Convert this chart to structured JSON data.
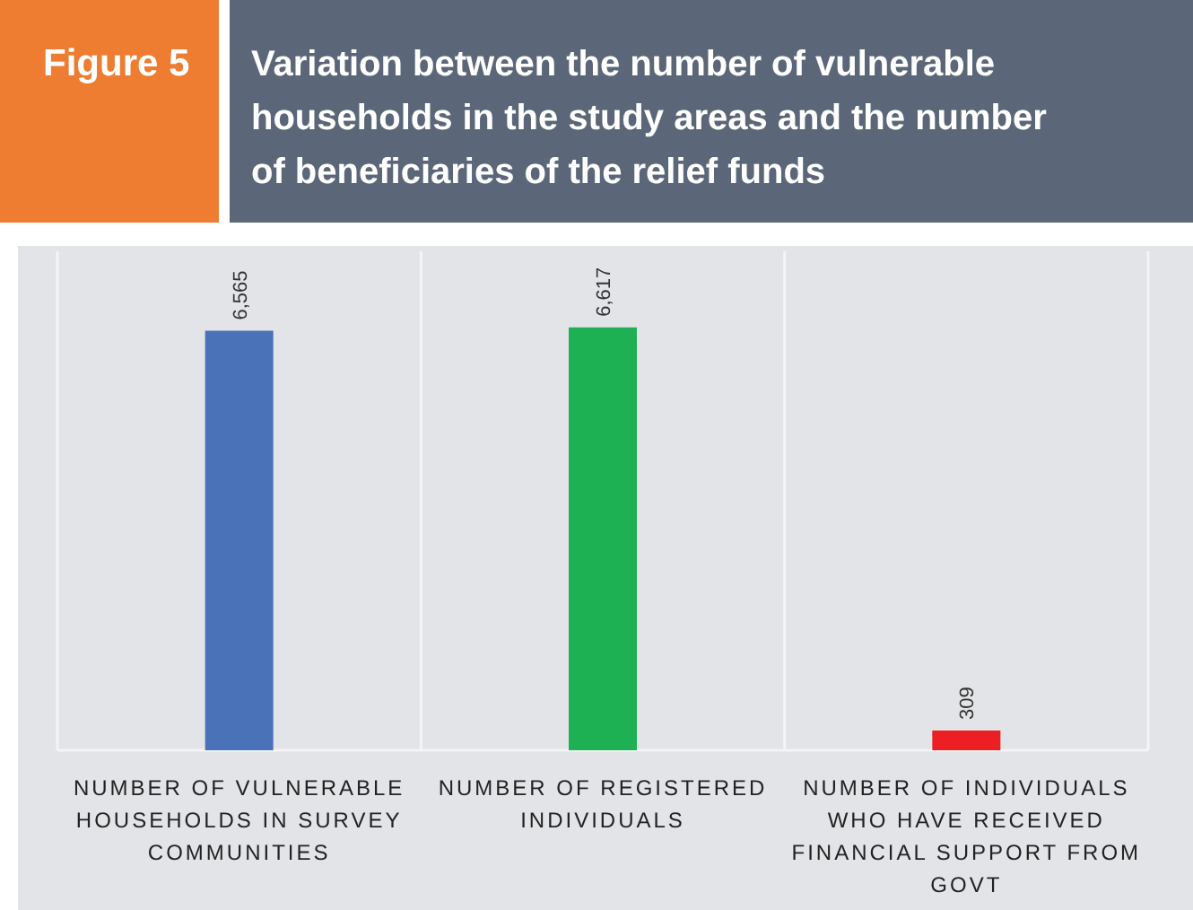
{
  "chart_data": {
    "type": "bar",
    "title": "Variation between the number of vulnerable households in the study areas and the number of beneficiaries of the relief funds",
    "annotations": [
      "Figure 5"
    ],
    "categories": [
      "NUMBER OF VULNERABLE HOUSEHOLDS IN SURVEY COMMUNITIES",
      "NUMBER OF REGISTERED INDIVIDUALS",
      "NUMBER OF INDIVIDUALS WHO HAVE RECEIVED FINANCIAL SUPPORT FROM GOVT"
    ],
    "values": [
      6565,
      6617,
      309
    ],
    "colors": [
      "#4a72b8",
      "#1db154",
      "#ec2024"
    ],
    "value_labels": [
      "6,565",
      "6,617",
      "309"
    ]
  }
}
